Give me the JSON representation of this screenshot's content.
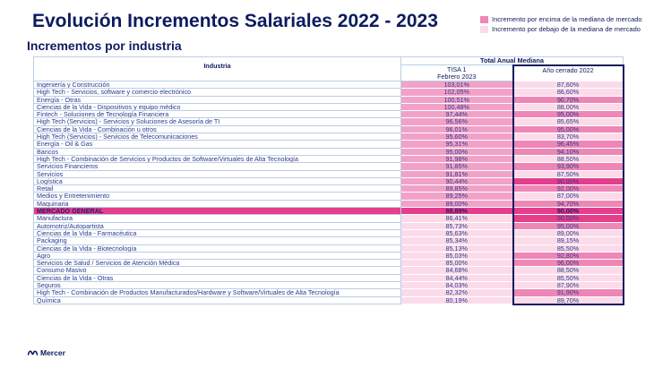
{
  "header": {
    "title": "Evolución Incrementos Salariales 2022 - 2023",
    "subtitle": "Incrementos por industria"
  },
  "legend": [
    {
      "label": "Incremento por encima de la mediana de mercado",
      "color": "#ee86b6"
    },
    {
      "label": "Incremento por debajo de la mediana de mercado",
      "color": "#fbdbe9"
    }
  ],
  "table": {
    "col_industria": "Industria",
    "col_group": "Total Anual  Mediana",
    "col_tisa": "TISA  1\nFebrero  2023",
    "col_ano": "Año cerrado  2022",
    "rows": [
      {
        "name": "Ingeniería y Construcción",
        "tisa": "103,01%",
        "ano": "87,60%",
        "t": "hi",
        "a": "lo"
      },
      {
        "name": "High Tech - Servicios, software y comercio electrónico",
        "tisa": "102,05%",
        "ano": "86,60%",
        "t": "hi",
        "a": "lo"
      },
      {
        "name": "Energía - Otras",
        "tisa": "100,51%",
        "ano": "90,70%",
        "t": "hi",
        "a": "hi"
      },
      {
        "name": "Ciencias de la Vida - Dispositivos y equipo médico",
        "tisa": "100,48%",
        "ano": "88,00%",
        "t": "hi",
        "a": "lo"
      },
      {
        "name": "Fintech - Soluciones de Tecnología Financiera",
        "tisa": "97,44%",
        "ano": "95,00%",
        "t": "hi",
        "a": "hi"
      },
      {
        "name": "High Tech (Servicios) - Servicios y Soluciones de Asesoría de TI",
        "tisa": "96,56%",
        "ano": "85,65%",
        "t": "hi",
        "a": "lo"
      },
      {
        "name": "Ciencias de la Vida - Combinación u otros",
        "tisa": "96,01%",
        "ano": "95,00%",
        "t": "hi",
        "a": "hi"
      },
      {
        "name": "High Tech (Servicios) - Servicios de Telecomunicaciones",
        "tisa": "95,60%",
        "ano": "83,70%",
        "t": "hi",
        "a": "lo"
      },
      {
        "name": "Energía - Oil & Gas",
        "tisa": "95,31%",
        "ano": "96,45%",
        "t": "hi",
        "a": "hi"
      },
      {
        "name": "Bancos",
        "tisa": "95,00%",
        "ano": "94,10%",
        "t": "hi",
        "a": "hi"
      },
      {
        "name": "High Tech - Combinación de Servicios y Productos de Software/Virtuales de Alta Tecnología",
        "tisa": "91,98%",
        "ano": "88,50%",
        "t": "hi",
        "a": "lo"
      },
      {
        "name": "Servicios Financieros",
        "tisa": "91,85%",
        "ano": "93,90%",
        "t": "hi",
        "a": "hi"
      },
      {
        "name": "Servicios",
        "tisa": "91,81%",
        "ano": "87,50%",
        "t": "hi",
        "a": "lo"
      },
      {
        "name": "Logística",
        "tisa": "90,44%",
        "ano": "90,00%",
        "t": "hi",
        "a": "mid"
      },
      {
        "name": "Retail",
        "tisa": "89,85%",
        "ano": "92,00%",
        "t": "hi",
        "a": "hi"
      },
      {
        "name": "Medios y Entretenimiento",
        "tisa": "89,25%",
        "ano": "87,00%",
        "t": "hi",
        "a": "lo"
      },
      {
        "name": "Maquinaria",
        "tisa": "89,00%",
        "ano": "94,70%",
        "t": "hi",
        "a": "hi"
      },
      {
        "name": "MERCADO GENERAL",
        "tisa": "88,89%",
        "ano": "90,00%",
        "t": "mid",
        "a": "mid"
      },
      {
        "name": "Manufactura",
        "tisa": "86,41%",
        "ano": "90,00%",
        "t": "lo",
        "a": "mid"
      },
      {
        "name": "Automotriz/Autopartista",
        "tisa": "85,73%",
        "ano": "95,00%",
        "t": "lo",
        "a": "hi"
      },
      {
        "name": "Ciencias de la Vida - Farmacéutica",
        "tisa": "85,63%",
        "ano": "89,00%",
        "t": "lo",
        "a": "lo"
      },
      {
        "name": "Packaging",
        "tisa": "85,34%",
        "ano": "89,15%",
        "t": "lo",
        "a": "lo"
      },
      {
        "name": "Ciencias de la Vida - Biotecnología",
        "tisa": "85,13%",
        "ano": "85,50%",
        "t": "lo",
        "a": "lo"
      },
      {
        "name": "Agro",
        "tisa": "85,03%",
        "ano": "92,80%",
        "t": "lo",
        "a": "hi"
      },
      {
        "name": "Servicios de Salud / Servicios de Atención Médica",
        "tisa": "85,00%",
        "ano": "96,00%",
        "t": "lo",
        "a": "hi"
      },
      {
        "name": "Consumo Masivo",
        "tisa": "84,68%",
        "ano": "88,50%",
        "t": "lo",
        "a": "lo"
      },
      {
        "name": "Ciencias de la Vida - Otras",
        "tisa": "84,44%",
        "ano": "85,50%",
        "t": "lo",
        "a": "lo"
      },
      {
        "name": "Seguros",
        "tisa": "84,03%",
        "ano": "87,90%",
        "t": "lo",
        "a": "lo"
      },
      {
        "name": "High Tech - Combinación de Productos Manufacturados/Hardware y Software/Virtuales de Alta Tecnología",
        "tisa": "82,32%",
        "ano": "91,90%",
        "t": "lo",
        "a": "hi"
      },
      {
        "name": "Química",
        "tisa": "80,19%",
        "ano": "89,70%",
        "t": "lo",
        "a": "lo"
      }
    ]
  },
  "footer": {
    "logo_text": "Mercer",
    "logo_icon": "mercer-logo-icon"
  }
}
